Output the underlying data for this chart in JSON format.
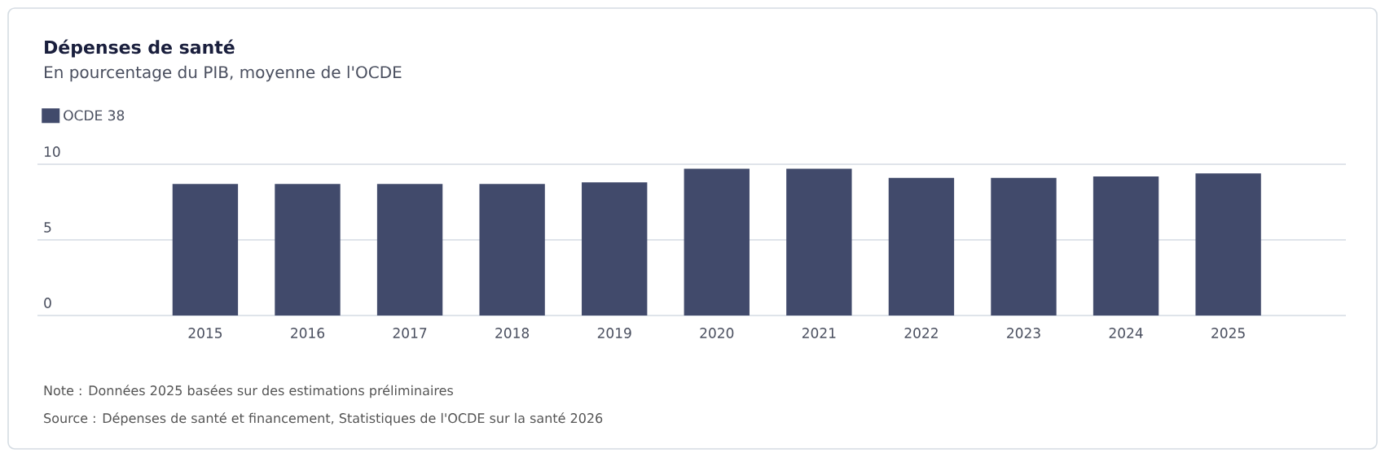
{
  "chart_data": {
    "type": "bar",
    "title": "Dépenses de santé",
    "subtitle": "En pourcentage du PIB, moyenne de l'OCDE",
    "categories": [
      "2015",
      "2016",
      "2017",
      "2018",
      "2019",
      "2020",
      "2021",
      "2022",
      "2023",
      "2024",
      "2025"
    ],
    "series": [
      {
        "name": "OCDE 38",
        "color": "#414a6b",
        "values": [
          8.7,
          8.7,
          8.7,
          8.7,
          8.8,
          9.7,
          9.7,
          9.1,
          9.1,
          9.2,
          9.4
        ]
      }
    ],
    "ylim": [
      0,
      10
    ],
    "yticks": [
      0,
      5,
      10
    ],
    "grid": "y",
    "legend": "top left",
    "annotations": [
      "Note : Données 2025 basées sur des estimations préliminaires",
      "Source : Dépenses de santé et financement, Statistiques de l'OCDE sur la santé 2026"
    ]
  }
}
